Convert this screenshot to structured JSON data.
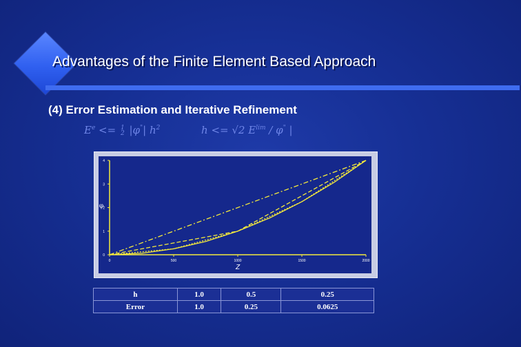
{
  "slide": {
    "title": "Advantages of the Finite Element Based Approach",
    "subtitle": "(4) Error Estimation and Iterative Refinement"
  },
  "formulas": {
    "left": {
      "lhs": "E",
      "lhs_sup": "e",
      "op": " <= ",
      "frac_num": "1",
      "frac_den": "2",
      "body_a": " |φ",
      "body_sup": "\"",
      "body_b": "| h",
      "body_sup2": "2"
    },
    "right": {
      "lhs": "h",
      "op": " <= ",
      "root": "√",
      "body_a": "2 E",
      "body_sup": "lim",
      "body_b": " / φ",
      "body_sup2": "\"",
      "body_c": " |"
    }
  },
  "chart_data": {
    "type": "line",
    "xlabel": "Z",
    "ylabel": "φ",
    "xlim": [
      0,
      2000
    ],
    "ylim": [
      0,
      4
    ],
    "x_ticks": [
      "0",
      "500",
      "1000",
      "1500",
      "2000"
    ],
    "y_ticks": [
      "0",
      "1",
      "2",
      "3",
      "4"
    ],
    "grid": false,
    "line_color": "#f5ea3c",
    "series": [
      {
        "style": "solid",
        "x": [
          0,
          250,
          500,
          750,
          1000,
          1250,
          1500,
          1750,
          2000
        ],
        "y": [
          0,
          0.0625,
          0.25,
          0.5625,
          1.0,
          1.5625,
          2.25,
          3.0625,
          4.0
        ]
      },
      {
        "style": "dash-dot",
        "x": [
          0,
          2000
        ],
        "y": [
          0,
          4.0
        ]
      },
      {
        "style": "dashed",
        "x": [
          0,
          1000,
          2000
        ],
        "y": [
          0,
          1.0,
          4.0
        ]
      },
      {
        "style": "dotted",
        "x": [
          0,
          500,
          1000,
          1500,
          2000
        ],
        "y": [
          0,
          0.25,
          1.0,
          2.25,
          4.0
        ]
      }
    ]
  },
  "error_table": {
    "rows": [
      [
        "h",
        "1.0",
        "0.5",
        "0.25"
      ],
      [
        "Error",
        "1.0",
        "0.25",
        "0.0625"
      ]
    ]
  }
}
